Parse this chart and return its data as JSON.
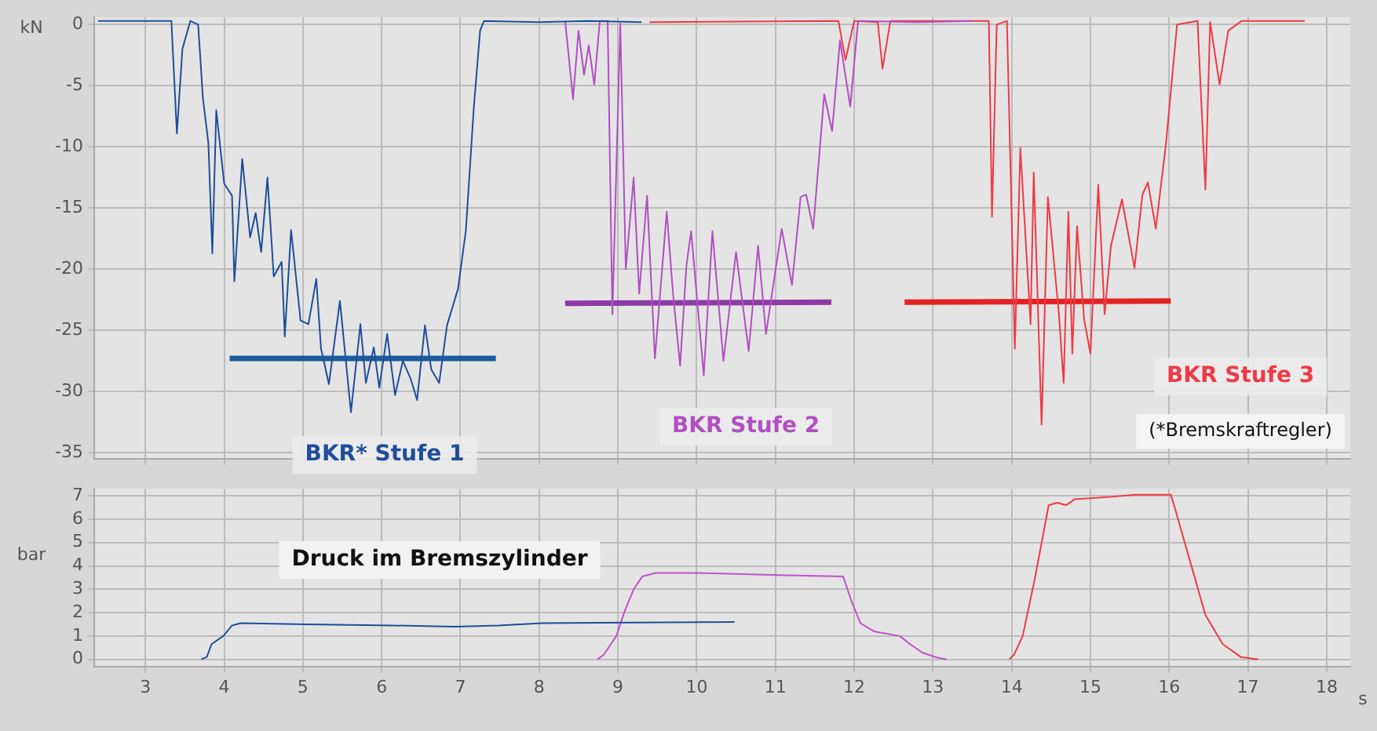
{
  "chart_data": [
    {
      "type": "line",
      "ylabel": "kN",
      "xlim": [
        2.35,
        18.3
      ],
      "xticks": [
        3,
        4,
        5,
        6,
        7,
        8,
        9,
        10,
        11,
        12,
        13,
        14,
        15,
        16,
        17,
        18
      ],
      "ylim": [
        -35.5,
        0.6
      ],
      "yticks": [
        0,
        -5,
        -10,
        -15,
        -20,
        -25,
        -30,
        -35
      ],
      "grid": true,
      "legend": false,
      "tick_labels": "y",
      "marker": "none",
      "line_style": "solid",
      "annotations": [
        "(*Bremskraftregler)"
      ],
      "series": [
        {
          "name": "BKR* Stufe 1",
          "color": "#1f4e9a",
          "x": [
            2.4,
            3.33,
            3.4,
            3.47,
            3.57,
            3.67,
            3.73,
            3.8,
            3.85,
            3.9,
            4.0,
            4.1,
            4.13,
            4.23,
            4.33,
            4.4,
            4.47,
            4.55,
            4.63,
            4.73,
            4.77,
            4.85,
            4.97,
            5.07,
            5.17,
            5.23,
            5.33,
            5.47,
            5.61,
            5.73,
            5.8,
            5.9,
            5.97,
            6.07,
            6.17,
            6.27,
            6.37,
            6.45,
            6.55,
            6.63,
            6.73,
            6.83,
            6.97,
            7.07,
            7.17,
            7.25,
            7.3,
            8.0,
            8.6,
            9.3
          ],
          "values": [
            0.3,
            0.3,
            -8.9,
            -2,
            0.3,
            0,
            -6,
            -9.7,
            -18.7,
            -7,
            -13,
            -14,
            -21,
            -11,
            -17.4,
            -15.4,
            -18.6,
            -12.5,
            -20.6,
            -19.4,
            -25.5,
            -16.8,
            -24.2,
            -24.5,
            -20.8,
            -26.5,
            -29.4,
            -22.6,
            -31.7,
            -24.5,
            -29.3,
            -26.4,
            -29.7,
            -25.3,
            -30.3,
            -27.5,
            -29,
            -30.7,
            -24.6,
            -28.2,
            -29.3,
            -24.6,
            -21.6,
            -16.8,
            -6.8,
            -0.5,
            0.3,
            0.2,
            0.3,
            0.2
          ]
        },
        {
          "name": "BKR Stufe 2",
          "color": "#b14fc2",
          "x": [
            8.33,
            8.43,
            8.5,
            8.57,
            8.63,
            8.7,
            8.77,
            8.87,
            8.93,
            9.03,
            9.1,
            9.2,
            9.27,
            9.37,
            9.47,
            9.62,
            9.7,
            9.79,
            9.87,
            9.93,
            10.09,
            10.2,
            10.34,
            10.5,
            10.66,
            10.78,
            10.88,
            11.08,
            11.21,
            11.32,
            11.39,
            11.48,
            11.62,
            11.72,
            11.82,
            11.95,
            12.05,
            12.8,
            13.5
          ],
          "values": [
            0.3,
            -6.1,
            -0.5,
            -4.1,
            -1.7,
            -4.9,
            0.3,
            0.3,
            -23.7,
            0.1,
            -20,
            -12.5,
            -22,
            -14,
            -27.3,
            -15.3,
            -22,
            -27.9,
            -19.7,
            -16.9,
            -28.7,
            -16.9,
            -27.5,
            -18.6,
            -26.7,
            -18.1,
            -25.3,
            -16.7,
            -21.3,
            -14.1,
            -13.9,
            -16.7,
            -5.7,
            -8.7,
            -1.3,
            -6.7,
            0.3,
            0.2,
            0.3
          ]
        },
        {
          "name": "BKR Stufe 3",
          "color": "#ee3a45",
          "x": [
            9.4,
            11.8,
            11.89,
            12.0,
            12.3,
            12.36,
            12.46,
            13.71,
            13.75,
            13.81,
            13.94,
            14.04,
            14.11,
            14.24,
            14.28,
            14.38,
            14.46,
            14.6,
            14.66,
            14.72,
            14.77,
            14.83,
            14.92,
            15.0,
            15.1,
            15.18,
            15.26,
            15.4,
            15.56,
            15.66,
            15.73,
            15.83,
            15.96,
            16.1,
            16.36,
            16.46,
            16.52,
            16.64,
            16.75,
            16.92,
            17.72
          ],
          "values": [
            0.2,
            0.3,
            -2.9,
            0.3,
            0.2,
            -3.6,
            0.3,
            0.3,
            -15.7,
            0,
            0.3,
            -26.5,
            -10.1,
            -24.5,
            -12.1,
            -32.7,
            -14.1,
            -23.7,
            -29.3,
            -15.3,
            -26.9,
            -16.5,
            -24.1,
            -26.9,
            -13.1,
            -23.7,
            -18.1,
            -14.3,
            -19.9,
            -13.9,
            -12.9,
            -16.7,
            -9.7,
            0,
            0.3,
            -13.5,
            0.2,
            -4.9,
            -0.5,
            0.3,
            0.3
          ]
        },
        {
          "color": "#1a5c9e",
          "x": [
            4.07,
            7.45
          ],
          "values": [
            -27.3,
            -27.3
          ]
        },
        {
          "color": "#8e3aa5",
          "x": [
            8.33,
            11.71
          ],
          "values": [
            -22.8,
            -22.7
          ]
        },
        {
          "color": "#e32222",
          "x": [
            12.64,
            16.02
          ],
          "values": [
            -22.7,
            -22.6
          ]
        }
      ]
    },
    {
      "type": "line",
      "title": "Druck im Bremszylinder",
      "xlabel": "s",
      "ylabel": "bar",
      "xlim": [
        2.35,
        18.3
      ],
      "xticks": [
        3,
        4,
        5,
        6,
        7,
        8,
        9,
        10,
        11,
        12,
        13,
        14,
        15,
        16,
        17,
        18
      ],
      "ylim": [
        -0.3,
        7.3
      ],
      "yticks": [
        0,
        1,
        2,
        3,
        4,
        5,
        6,
        7
      ],
      "grid": true,
      "legend": false,
      "marker": "none",
      "line_style": "solid",
      "series": [
        {
          "color": "#1f4e9a",
          "x": [
            3.71,
            3.78,
            3.84,
            3.99,
            4.1,
            4.21,
            5.04,
            6.15,
            6.93,
            7.48,
            8.04,
            10.48
          ],
          "values": [
            0,
            0.1,
            0.65,
            1.0,
            1.45,
            1.55,
            1.5,
            1.45,
            1.4,
            1.45,
            1.55,
            1.6
          ]
        },
        {
          "color": "#c052c8",
          "x": [
            8.74,
            8.82,
            8.98,
            9.09,
            9.2,
            9.31,
            9.48,
            10.03,
            11.14,
            11.86,
            11.97,
            12.08,
            12.25,
            12.58,
            12.69,
            12.86,
            13.03,
            13.17
          ],
          "values": [
            0,
            0.2,
            1.0,
            2.1,
            3.0,
            3.55,
            3.7,
            3.7,
            3.6,
            3.55,
            2.45,
            1.55,
            1.2,
            1.0,
            0.7,
            0.3,
            0.1,
            0
          ]
        },
        {
          "color": "#ee3a45",
          "x": [
            13.97,
            14.03,
            14.14,
            14.3,
            14.47,
            14.58,
            14.69,
            14.8,
            15.24,
            15.57,
            16.02,
            16.07,
            16.24,
            16.46,
            16.68,
            16.91,
            17.13
          ],
          "values": [
            0,
            0.2,
            1.0,
            3.55,
            6.6,
            6.7,
            6.6,
            6.85,
            6.95,
            7.05,
            7.05,
            6.5,
            4.5,
            1.9,
            0.65,
            0.1,
            0
          ]
        }
      ]
    }
  ]
}
